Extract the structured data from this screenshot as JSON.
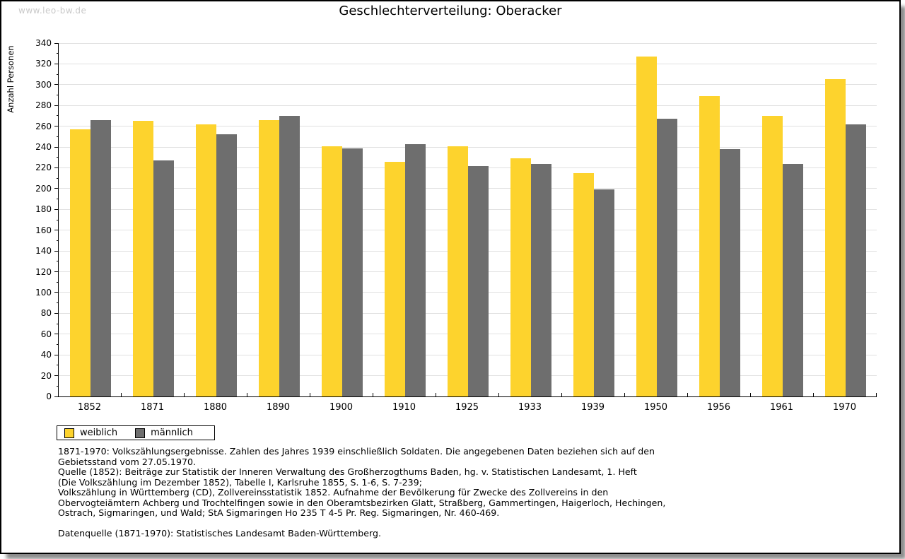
{
  "page": {
    "watermark": "www.leo-bw.de",
    "title": "Geschlechterverteilung: Oberacker"
  },
  "chart_data": {
    "type": "bar",
    "title": "Geschlechterverteilung: Oberacker",
    "xlabel": "",
    "ylabel": "Anzahl Personen",
    "ylim": [
      0,
      340
    ],
    "ytick_step": 20,
    "ytick_minor_step": 10,
    "grid": true,
    "legend_position": "bottom-left",
    "categories": [
      "1852",
      "1871",
      "1880",
      "1890",
      "1900",
      "1910",
      "1925",
      "1933",
      "1939",
      "1950",
      "1956",
      "1961",
      "1970"
    ],
    "series": [
      {
        "name": "weiblich",
        "color": "#FDD32D",
        "values": [
          257,
          265,
          262,
          266,
          241,
          226,
          241,
          229,
          215,
          327,
          289,
          270,
          305
        ]
      },
      {
        "name": "männlich",
        "color": "#6E6E6E",
        "values": [
          266,
          227,
          252,
          270,
          239,
          243,
          222,
          224,
          199,
          267,
          238,
          224,
          262
        ]
      }
    ]
  },
  "colors": {
    "gridline": "#e1e1e1",
    "axis": "#000000",
    "watermark": "#c9c9c9",
    "frame_border": "#000000",
    "background": "#ffffff"
  },
  "footer": {
    "lines": [
      "1871-1970: Volkszählungsergebnisse. Zahlen des Jahres 1939 einschließlich Soldaten. Die angegebenen Daten beziehen sich auf den",
      "Gebietsstand vom 27.05.1970.",
      "Quelle (1852): Beiträge zur Statistik der Inneren Verwaltung des Großherzogthums Baden, hg. v. Statistischen Landesamt, 1. Heft",
      "(Die Volkszählung im Dezember 1852), Tabelle I, Karlsruhe 1855, S. 1-6, S. 7-239;",
      "Volkszählung in Württemberg (CD), Zollvereinsstatistik 1852. Aufnahme der Bevölkerung für Zwecke des Zollvereins in den",
      "Obervogteiämtern Achberg und Trochtelfingen sowie in den Oberamtsbezirken Glatt, Straßberg, Gammertingen, Haigerloch, Hechingen,",
      "Ostrach, Sigmaringen, und Wald; StA Sigmaringen Ho 235 T 4-5 Pr. Reg. Sigmaringen, Nr. 460-469."
    ],
    "datasource": "Datenquelle (1871-1970): Statistisches Landesamt Baden-Württemberg."
  }
}
